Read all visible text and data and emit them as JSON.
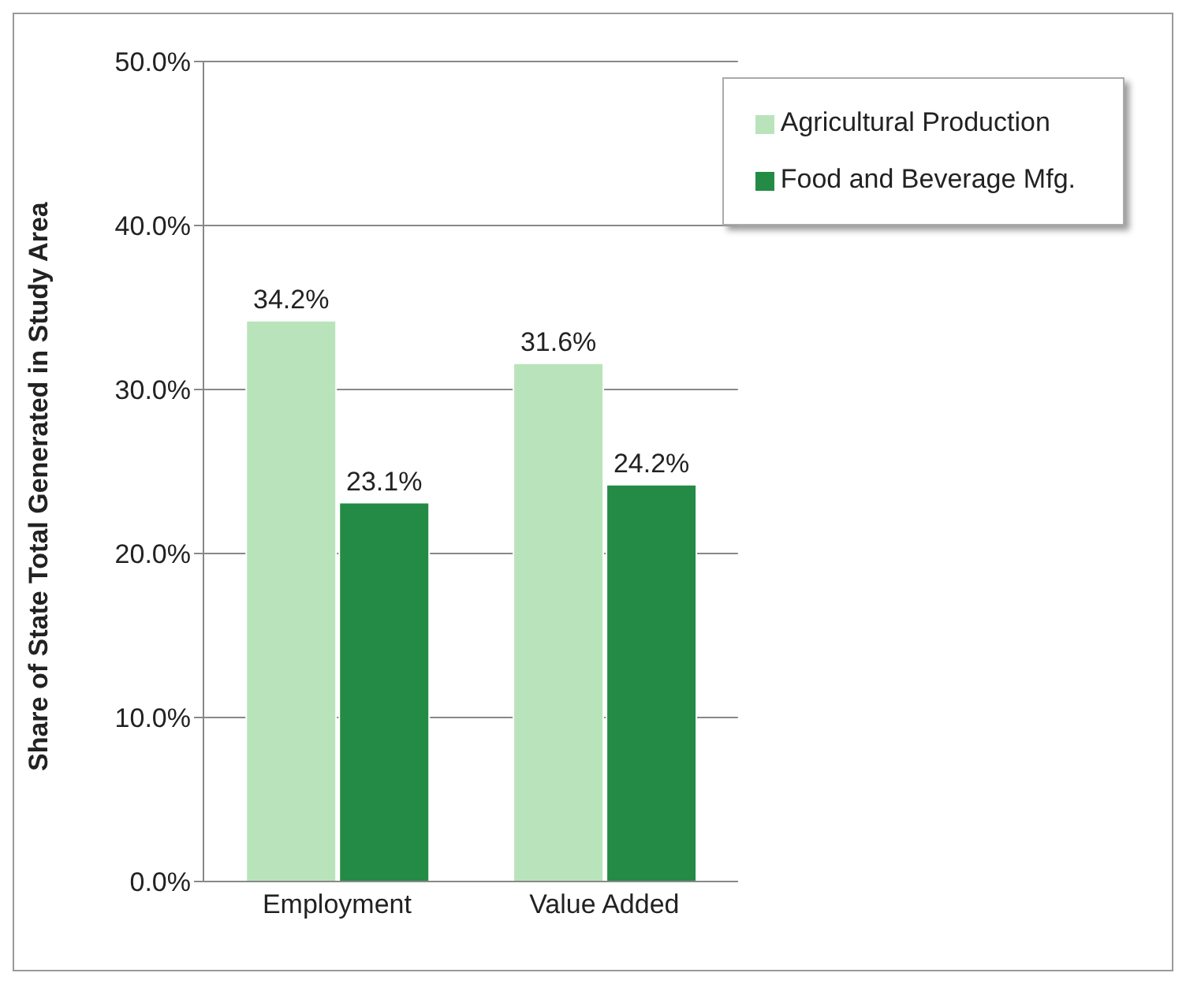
{
  "chart_data": {
    "type": "bar",
    "ylabel": "Share of State Total Generated in Study Area",
    "categories": [
      "Employment",
      "Value Added"
    ],
    "series": [
      {
        "name": "Agricultural Production",
        "color": "#b9e4bb",
        "values": [
          34.2,
          31.6
        ]
      },
      {
        "name": "Food and Beverage Mfg.",
        "color": "#238b45",
        "values": [
          23.1,
          24.2
        ]
      }
    ],
    "ylim": [
      0,
      50
    ],
    "yticks": [
      {
        "value": 0,
        "label": "0.0%"
      },
      {
        "value": 10,
        "label": "10.0%"
      },
      {
        "value": 20,
        "label": "20.0%"
      },
      {
        "value": 30,
        "label": "30.0%"
      },
      {
        "value": 40,
        "label": "40.0%"
      },
      {
        "value": 50,
        "label": "50.0%"
      }
    ],
    "value_labels": [
      [
        "34.2%",
        "31.6%"
      ],
      [
        "23.1%",
        "24.2%"
      ]
    ],
    "grid": "y",
    "legend": "top right"
  }
}
